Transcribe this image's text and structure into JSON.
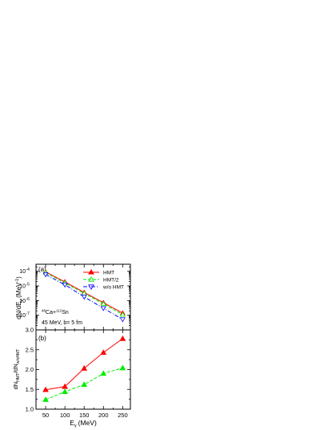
{
  "chart_data": [
    {
      "type": "line",
      "panel_label": "(a)",
      "ylabel": "dN/dE",
      "ylabel_sub": "γ",
      "ylabel_unit": "(MeV",
      "ylabel_unit_sup": "-1",
      "ylabel_unit_end": ")",
      "yscale": "log",
      "ylim": [
        1e-08,
        0.0003
      ],
      "yticks": [
        {
          "value": 1e-07,
          "base": "10",
          "exp": "-7"
        },
        {
          "value": 1e-06,
          "base": "10",
          "exp": "-6"
        },
        {
          "value": 1e-05,
          "base": "10",
          "exp": "-5"
        },
        {
          "value": 0.0001,
          "base": "10",
          "exp": "-4"
        }
      ],
      "x": [
        50,
        100,
        150,
        200,
        250
      ],
      "series": [
        {
          "name": "HMT",
          "color": "#ff0000",
          "dash": "",
          "marker": "triangle-up-filled",
          "values": [
            9e-05,
            1.9e-05,
            3.6e-06,
            7.2e-07,
            1.4e-07
          ]
        },
        {
          "name": "HMT/2",
          "color": "#00ee00",
          "dash": "4,2",
          "marker": "triangle-up-open",
          "values": [
            8.1e-05,
            1.6e-05,
            3.1e-06,
            6e-07,
            1.1e-07
          ]
        },
        {
          "name": "w/o HMT",
          "color": "#0000ff",
          "dash": "5,2,1,2",
          "marker": "triangle-down-open",
          "values": [
            6e-05,
            1.2e-05,
            1.8e-06,
            3e-07,
            5.2e-08
          ]
        }
      ],
      "annotation": {
        "reaction_pre_sup": "48",
        "reaction_a": "Ca+",
        "reaction_mid_sup": "112",
        "reaction_b": "Sn",
        "conditions": "45 MeV, b= 5 fm"
      },
      "legend_position": "top-right"
    },
    {
      "type": "line",
      "panel_label": "(b)",
      "ylabel_main": "dN",
      "ylabel_sub1": "HMT",
      "ylabel_mid": "/dN",
      "ylabel_sub2": "w/oHMT",
      "ylim": [
        1.0,
        3.0
      ],
      "yticks": [
        "1.0",
        "1.5",
        "2.0",
        "2.5",
        "3.0"
      ],
      "x": [
        50,
        100,
        150,
        200,
        250
      ],
      "xlabel": "E",
      "xlabel_sub": "γ",
      "xlabel_unit": "(MeV)",
      "xlim": [
        25,
        270
      ],
      "xticks": [
        "50",
        "100",
        "150",
        "200",
        "250"
      ],
      "series": [
        {
          "color": "#ff0000",
          "dash": "",
          "marker": "triangle-up-filled",
          "values": [
            1.49,
            1.57,
            2.03,
            2.43,
            2.78
          ]
        },
        {
          "color": "#00ee00",
          "dash": "4,2",
          "marker": "triangle-up-filled",
          "values": [
            1.24,
            1.44,
            1.62,
            1.9,
            2.04
          ]
        }
      ]
    }
  ]
}
